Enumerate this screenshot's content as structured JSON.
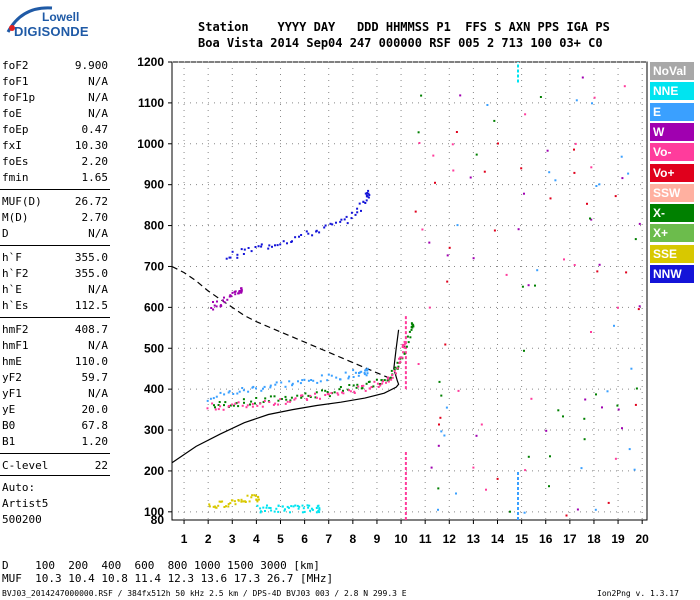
{
  "logo": {
    "line1": "Lowell",
    "line2": "DIGISONDE"
  },
  "header": {
    "row1": "Station    YYYY DAY   DDD HHMMSS P1  FFS S AXN PPS IGA PS",
    "row2": "Boa Vista 2014 Sep04 247 000000 RSF 005 2 713 100 03+ C0"
  },
  "params": {
    "group1": [
      {
        "name": "foF2",
        "value": "9.900"
      },
      {
        "name": "foF1",
        "value": "N/A"
      },
      {
        "name": "foF1p",
        "value": "N/A"
      },
      {
        "name": "foE",
        "value": "N/A"
      },
      {
        "name": "foEp",
        "value": "0.47"
      },
      {
        "name": "fxI",
        "value": "10.30"
      },
      {
        "name": "foEs",
        "value": "2.20"
      },
      {
        "name": "fmin",
        "value": "1.65"
      }
    ],
    "group2": [
      {
        "name": "MUF(D)",
        "value": "26.72"
      },
      {
        "name": "M(D)",
        "value": "2.70"
      },
      {
        "name": "D",
        "value": "N/A"
      }
    ],
    "group3": [
      {
        "name": "h`F",
        "value": "355.0"
      },
      {
        "name": "h`F2",
        "value": "355.0"
      },
      {
        "name": "h`E",
        "value": "N/A"
      },
      {
        "name": "h`Es",
        "value": "112.5"
      }
    ],
    "group4": [
      {
        "name": "hmF2",
        "value": "408.7"
      },
      {
        "name": "hmF1",
        "value": "N/A"
      },
      {
        "name": "hmE",
        "value": "110.0"
      },
      {
        "name": "yF2",
        "value": "59.7"
      },
      {
        "name": "yF1",
        "value": "N/A"
      },
      {
        "name": "yE",
        "value": "20.0"
      },
      {
        "name": "B0",
        "value": "67.8"
      },
      {
        "name": "B1",
        "value": "1.20"
      }
    ],
    "group5": [
      {
        "name": "C-level",
        "value": "22"
      }
    ]
  },
  "auto": {
    "line1": "Auto:",
    "line2": "Artist5",
    "line3": "500200"
  },
  "legend": [
    {
      "label": "NoVal",
      "color": "#a8a8a8"
    },
    {
      "label": "NNE",
      "color": "#00e4f0"
    },
    {
      "label": "E",
      "color": "#3aa0ff"
    },
    {
      "label": "W",
      "color": "#a000b0"
    },
    {
      "label": "Vo-",
      "color": "#ff3c9c"
    },
    {
      "label": "Vo+",
      "color": "#e0001c"
    },
    {
      "label": "SSW",
      "color": "#ffb0a0"
    },
    {
      "label": "X-",
      "color": "#008000"
    },
    {
      "label": "X+",
      "color": "#6cbc4c"
    },
    {
      "label": "SSE",
      "color": "#d8c800"
    },
    {
      "label": "NNW",
      "color": "#1414d8"
    }
  ],
  "bottom": {
    "d_row": "D    100  200  400  600  800 1000 1500 3000 [km]",
    "muf_row": "MUF  10.3 10.4 10.8 11.4 12.3 13.6 17.3 26.7 [MHz]"
  },
  "footer": {
    "left": "BVJ03_2014247000000.RSF / 384fx512h 50 kHz 2.5 km / DPS-4D BVJ03 003 / 2.8 N 299.3 E",
    "right": "Ion2Png v. 1.3.17"
  },
  "chart_data": {
    "type": "scatter",
    "xlim": [
      0.5,
      20.2
    ],
    "ylim": [
      80,
      1200
    ],
    "x_ticks": [
      1,
      2,
      3,
      4,
      5,
      6,
      7,
      8,
      9,
      10,
      11,
      12,
      13,
      14,
      15,
      16,
      17,
      18,
      19,
      20
    ],
    "y_ticks": [
      100,
      200,
      300,
      400,
      500,
      600,
      700,
      800,
      900,
      1000,
      1100,
      1200
    ],
    "grid": true,
    "series": [
      {
        "name": "X-",
        "color": "#008000",
        "x": [
          2.2,
          3.0,
          4.0,
          5.0,
          6.0,
          7.0,
          8.0,
          8.8,
          9.4,
          9.8,
          10.1,
          10.4
        ],
        "y": [
          362,
          368,
          372,
          380,
          386,
          394,
          405,
          416,
          430,
          450,
          490,
          555
        ]
      },
      {
        "name": "Vo-",
        "color": "#ff3c9c",
        "x": [
          2.0,
          3.0,
          4.0,
          5.0,
          6.0,
          7.0,
          8.0,
          8.8,
          9.4,
          9.8,
          10.1
        ],
        "y": [
          358,
          362,
          366,
          374,
          380,
          388,
          398,
          410,
          425,
          450,
          510
        ]
      },
      {
        "name": "E",
        "color": "#3aa0ff",
        "x": [
          2.0,
          3.0,
          4.0,
          5.0,
          6.0,
          7.0,
          8.0,
          8.5
        ],
        "y": [
          380,
          395,
          405,
          415,
          420,
          430,
          440,
          445
        ]
      },
      {
        "name": "NNW",
        "color": "#1414d8",
        "x": [
          2.7,
          3.5,
          4.5,
          5.5,
          6.5,
          7.5,
          8.2,
          8.6
        ],
        "y": [
          725,
          740,
          755,
          770,
          790,
          810,
          840,
          880
        ]
      },
      {
        "name": "W",
        "color": "#a000b0",
        "x": [
          2.1,
          2.5,
          3.0,
          3.3
        ],
        "y": [
          605,
          615,
          630,
          645
        ]
      },
      {
        "name": "SSE",
        "color": "#d8c800",
        "x": [
          2.0,
          2.5,
          3.0,
          3.5,
          4.0
        ],
        "y": [
          115,
          120,
          128,
          133,
          135
        ]
      },
      {
        "name": "NNE",
        "color": "#00e4f0",
        "x": [
          4.0,
          4.5,
          5.0,
          5.5,
          6.0,
          6.5
        ],
        "y": [
          110,
          110,
          110,
          110,
          110,
          110
        ]
      }
    ],
    "model_profile_solid": {
      "x": [
        0.5,
        1.5,
        2.5,
        3.5,
        4.5,
        5.5,
        6.5,
        7.5,
        8.5,
        9.3,
        9.8,
        9.9,
        9.85,
        9.7,
        9.8,
        9.9
      ],
      "y": [
        220,
        260,
        290,
        318,
        338,
        350,
        360,
        368,
        378,
        390,
        405,
        412,
        420,
        450,
        500,
        545
      ]
    },
    "model_trace_dashed": {
      "x": [
        0.5,
        1.0,
        1.5,
        2.0,
        2.5,
        3.0,
        3.5,
        4.0,
        5.0,
        6.0,
        7.0,
        8.0,
        9.0,
        9.6
      ],
      "y": [
        700,
        685,
        665,
        640,
        620,
        600,
        580,
        565,
        540,
        515,
        490,
        465,
        440,
        425
      ]
    }
  }
}
